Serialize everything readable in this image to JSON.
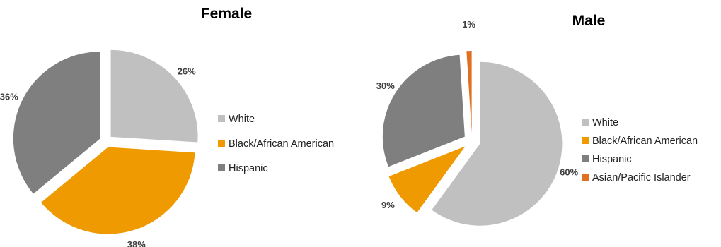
{
  "chart_data": [
    {
      "type": "pie",
      "title": "Female",
      "slices": [
        {
          "label": "White",
          "value": 26,
          "display": "26%",
          "color": "#c0c0c0"
        },
        {
          "label": "Black/African American",
          "value": 38,
          "display": "38%",
          "color": "#ee9a00"
        },
        {
          "label": "Hispanic",
          "value": 36,
          "display": "36%",
          "color": "#7f7f7f"
        }
      ],
      "legend": [
        "White",
        "Black/African American",
        "Hispanic"
      ],
      "legend_position": "right",
      "exploded": true
    },
    {
      "type": "pie",
      "title": "Male",
      "slices": [
        {
          "label": "White",
          "value": 60,
          "display": "60%",
          "color": "#c0c0c0"
        },
        {
          "label": "Black/African American",
          "value": 9,
          "display": "9%",
          "color": "#ee9a00"
        },
        {
          "label": "Hispanic",
          "value": 30,
          "display": "30%",
          "color": "#7f7f7f"
        },
        {
          "label": "Asian/Pacific Islander",
          "value": 1,
          "display": "1%",
          "color": "#e07020"
        }
      ],
      "legend": [
        "White",
        "Black/African American",
        "Hispanic",
        "Asian/Pacific Islander"
      ],
      "legend_position": "right",
      "exploded": true
    }
  ]
}
